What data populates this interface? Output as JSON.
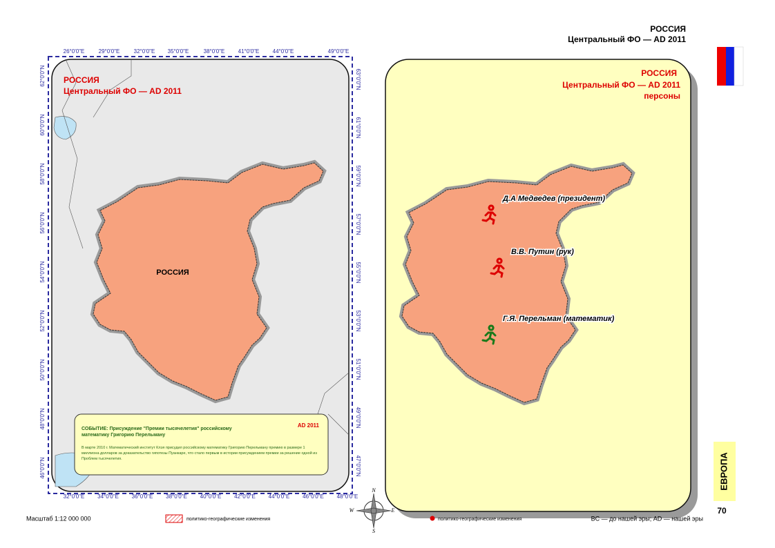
{
  "header": {
    "title": "РОССИЯ",
    "subtitle": "Центральный ФО — AD 2011"
  },
  "left_map": {
    "title": "РОССИЯ",
    "subtitle": "Центральный ФО — AD 2011",
    "region_label": "РОССИЯ",
    "top_labels": [
      "26°0'0\"E",
      "29°0'0\"E",
      "32°0'0\"E",
      "35°0'0\"E",
      "38°0'0\"E",
      "41°0'0\"E",
      "44°0'0\"E",
      "49°0'0\"E"
    ],
    "bottom_labels": [
      "32°0'0\"E",
      "34°0'0\"E",
      "36°0'0\"E",
      "38°0'0\"E",
      "40°0'0\"E",
      "42°0'0\"E",
      "44°0'0\"E",
      "46°0'0\"E",
      "48°0'0\"E"
    ],
    "left_labels": [
      "62°0'0\"N",
      "60°0'0\"N",
      "58°0'0\"N",
      "56°0'0\"N",
      "54°0'0\"N",
      "52°0'0\"N",
      "50°0'0\"N",
      "48°0'0\"N",
      "46°0'0\"N"
    ],
    "right_labels": [
      "63°0'0\"N",
      "61°0'0\"N",
      "59°0'0\"N",
      "57°0'0\"N",
      "55°0'0\"N",
      "53°0'0\"N",
      "51°0'0\"N",
      "49°0'0\"N",
      "47°0'0\"N"
    ],
    "event": {
      "era": "AD 2011",
      "title": "СОБЫТИЕ: Присуждение \"Премии тысячелетия\" российскому математику Григорию Перельману",
      "text": "В марте 2010 г. Математический институт Клэя присудил российскому математику Григорию Перельману премию в размере 1 миллиона долларов за доказательство гипотезы Пуанкаре, что стало первым в истории присуждением премии за решение одной из Проблем тысячелетия."
    }
  },
  "right_map": {
    "title": "РОССИЯ",
    "subtitle": "Центральный ФО — AD 2011",
    "caption": "персоны",
    "persons": [
      "Д.А Медведев (президент)",
      "В.В. Путин (рук)",
      "Г.Я. Перельман (математик)"
    ]
  },
  "compass": [
    "N",
    "S",
    "W",
    "E"
  ],
  "footer": {
    "scale": "Масштаб 1:12 000 000",
    "legend_hatch": "политико-географические изменения",
    "legend_dot": "политико-географические изменения",
    "era_note": "BC — до нашей эры; AD — нашей эры",
    "section": "ЕВРОПА",
    "page": "70"
  }
}
